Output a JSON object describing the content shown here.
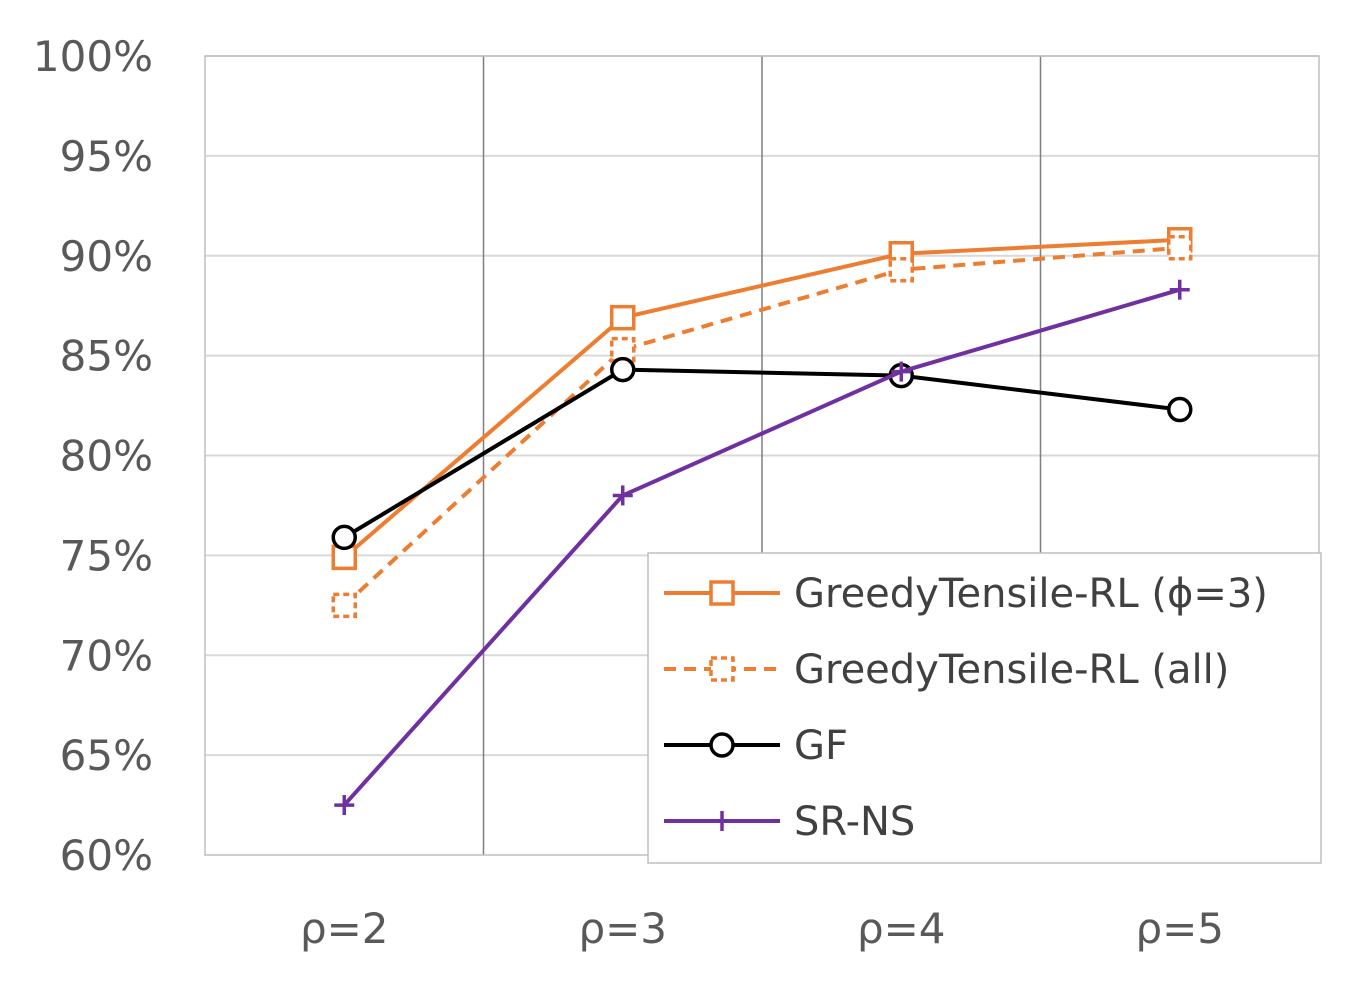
{
  "chart_data": {
    "type": "line",
    "categories": [
      "ρ=2",
      "ρ=3",
      "ρ=4",
      "ρ=5"
    ],
    "y_ticks": [
      "60%",
      "65%",
      "70%",
      "75%",
      "80%",
      "85%",
      "90%",
      "95%",
      "100%"
    ],
    "ylim": [
      60,
      100
    ],
    "y_step": 5,
    "grid": true,
    "legend_position": "bottom-right",
    "series": [
      {
        "name": "GreedyTensile-RL (ϕ=3)",
        "values": [
          74.9,
          86.9,
          90.1,
          90.8
        ],
        "color": "#ED7D31",
        "dash": "solid",
        "marker": "square"
      },
      {
        "name": "GreedyTensile-RL (all)",
        "values": [
          72.5,
          85.3,
          89.3,
          90.4
        ],
        "color": "#ED7D31",
        "dash": "dashed",
        "marker": "square"
      },
      {
        "name": "GF",
        "values": [
          75.9,
          84.3,
          84.0,
          82.3
        ],
        "color": "#000000",
        "dash": "solid",
        "marker": "circle"
      },
      {
        "name": "SR-NS",
        "values": [
          62.5,
          78.0,
          84.2,
          88.3
        ],
        "color": "#7030A0",
        "dash": "solid",
        "marker": "plus"
      }
    ]
  }
}
